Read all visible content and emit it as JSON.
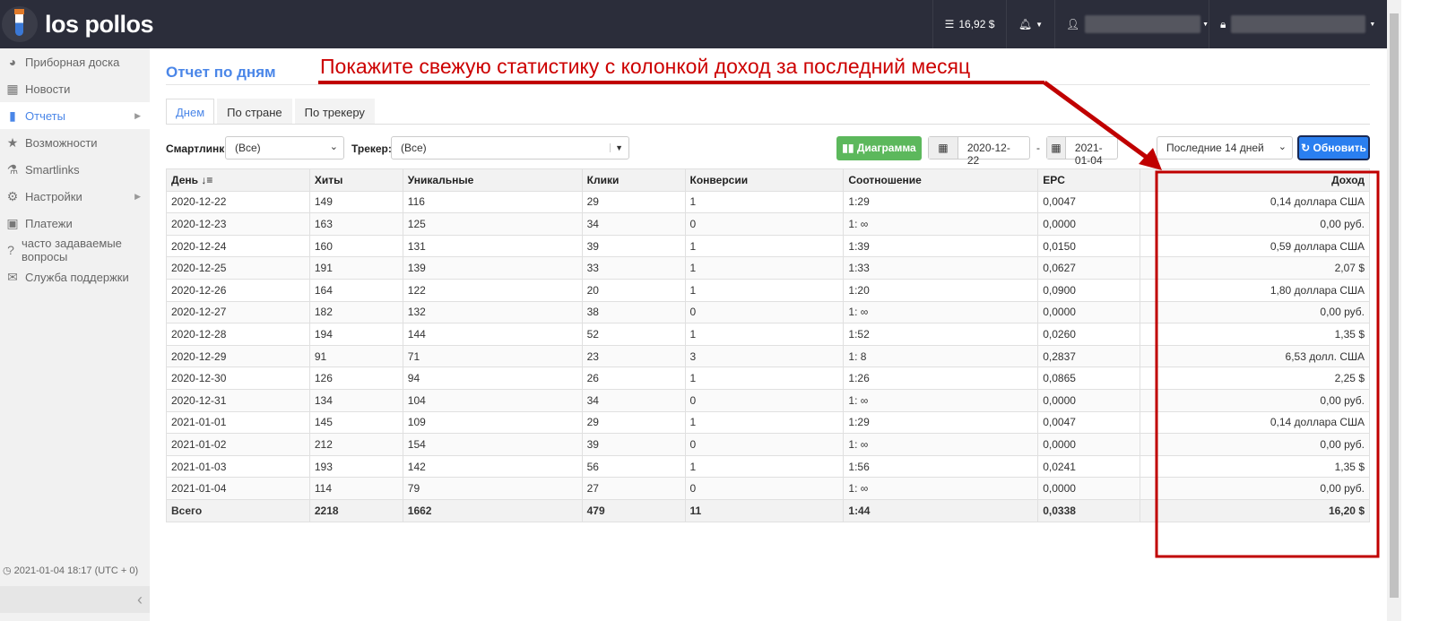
{
  "brand": "los pollos",
  "topbar": {
    "balance": "16,92 $",
    "icons": [
      "database-icon",
      "bell-icon",
      "user-icon",
      "lock-user-icon"
    ]
  },
  "sidebar": {
    "items": [
      {
        "label": "Приборная доска",
        "icon": "dashboard-icon"
      },
      {
        "label": "Новости",
        "icon": "calendar-icon"
      },
      {
        "label": "Отчеты",
        "icon": "bar-chart-icon",
        "active": true,
        "arrow": true
      },
      {
        "label": "Возможности",
        "icon": "star-icon"
      },
      {
        "label": "Smartlinks",
        "icon": "flask-icon"
      },
      {
        "label": "Настройки",
        "icon": "gear-icon",
        "arrow": true
      },
      {
        "label": "Платежи",
        "icon": "briefcase-icon"
      },
      {
        "label": "часто задаваемые вопросы",
        "icon": "question-icon"
      },
      {
        "label": "Служба поддержки",
        "icon": "envelope-icon"
      }
    ],
    "clock": "2021-01-04 18:17 (UTC + 0)"
  },
  "page": {
    "title": "Отчет по дням",
    "tabs": [
      "Днем",
      "По стране",
      "По трекеру"
    ]
  },
  "filters": {
    "smartlink_label": "Смартлинк:",
    "smartlink_value": "(Все)",
    "tracker_label": "Трекер:",
    "tracker_value": "(Все)",
    "chart_button": "Диаграмма",
    "date_from": "2020-12-22",
    "dash": "-",
    "date_to": "2021-01-04",
    "period": "Последние 14 дней",
    "refresh_button": "Обновить"
  },
  "table": {
    "headers": [
      "День",
      "Хиты",
      "Уникальные",
      "Клики",
      "Конверсии",
      "Соотношение",
      "EPC",
      "",
      "Доход"
    ],
    "rows": [
      [
        "2020-12-22",
        "149",
        "116",
        "29",
        "1",
        "1:29",
        "0,0047",
        "",
        "0,14 доллара США"
      ],
      [
        "2020-12-23",
        "163",
        "125",
        "34",
        "0",
        "1: ∞",
        "0,0000",
        "",
        "0,00 руб."
      ],
      [
        "2020-12-24",
        "160",
        "131",
        "39",
        "1",
        "1:39",
        "0,0150",
        "",
        "0,59 доллара США"
      ],
      [
        "2020-12-25",
        "191",
        "139",
        "33",
        "1",
        "1:33",
        "0,0627",
        "",
        "2,07 $"
      ],
      [
        "2020-12-26",
        "164",
        "122",
        "20",
        "1",
        "1:20",
        "0,0900",
        "",
        "1,80 доллара США"
      ],
      [
        "2020-12-27",
        "182",
        "132",
        "38",
        "0",
        "1: ∞",
        "0,0000",
        "",
        "0,00 руб."
      ],
      [
        "2020-12-28",
        "194",
        "144",
        "52",
        "1",
        "1:52",
        "0,0260",
        "",
        "1,35 $"
      ],
      [
        "2020-12-29",
        "91",
        "71",
        "23",
        "3",
        "1: 8",
        "0,2837",
        "",
        "6,53 долл. США"
      ],
      [
        "2020-12-30",
        "126",
        "94",
        "26",
        "1",
        "1:26",
        "0,0865",
        "",
        "2,25 $"
      ],
      [
        "2020-12-31",
        "134",
        "104",
        "34",
        "0",
        "1: ∞",
        "0,0000",
        "",
        "0,00 руб."
      ],
      [
        "2021-01-01",
        "145",
        "109",
        "29",
        "1",
        "1:29",
        "0,0047",
        "",
        "0,14 доллара США"
      ],
      [
        "2021-01-02",
        "212",
        "154",
        "39",
        "0",
        "1: ∞",
        "0,0000",
        "",
        "0,00 руб."
      ],
      [
        "2021-01-03",
        "193",
        "142",
        "56",
        "1",
        "1:56",
        "0,0241",
        "",
        "1,35 $"
      ],
      [
        "2021-01-04",
        "114",
        "79",
        "27",
        "0",
        "1: ∞",
        "0,0000",
        "",
        "0,00 руб."
      ]
    ],
    "total": [
      "Всего",
      "2218",
      "1662",
      "479",
      "11",
      "1:44",
      "0,0338",
      "",
      "16,20 $"
    ]
  },
  "annotation": {
    "text": "Покажите свежую статистику с колонкой доход за последний месяц",
    "color": "#c00000"
  }
}
